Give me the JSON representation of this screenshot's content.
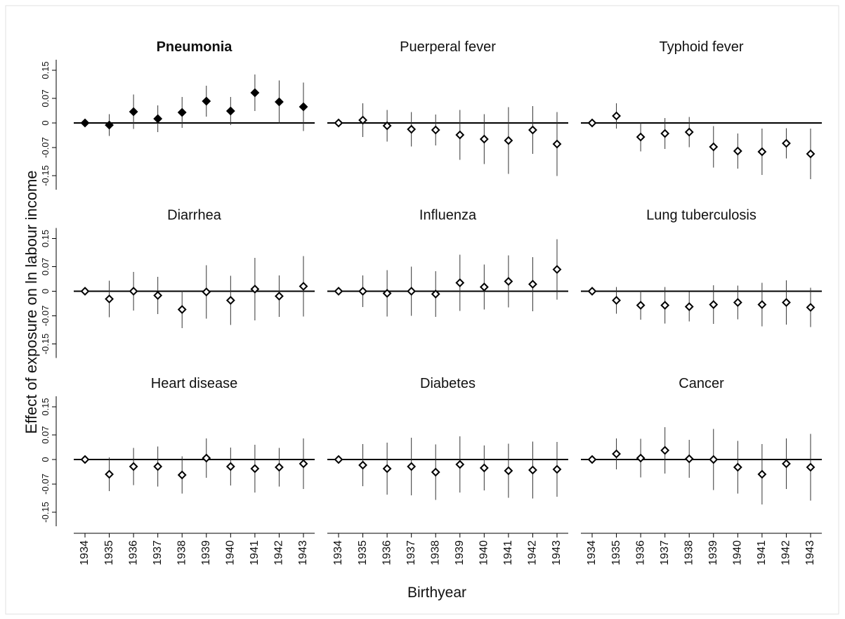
{
  "ylabel": "Effect of exposure on ln labour income",
  "xlabel": "Birthyear",
  "chart_data": [
    {
      "type": "errorbar",
      "title": "Pneumonia",
      "title_bold": true,
      "filled": true,
      "values": [
        0,
        -0.006,
        0.032,
        0.012,
        0.03,
        0.062,
        0.034,
        0.086,
        0.06,
        0.046
      ],
      "errors": [
        0,
        0.031,
        0.049,
        0.038,
        0.044,
        0.044,
        0.04,
        0.052,
        0.061,
        0.069
      ],
      "ylim": [
        -0.19,
        0.18
      ],
      "yticks": [
        0.15,
        0.07,
        0,
        -0.07,
        -0.15
      ]
    },
    {
      "type": "errorbar",
      "title": "Puerperal fever",
      "title_bold": false,
      "filled": false,
      "values": [
        0,
        0.008,
        -0.008,
        -0.018,
        -0.02,
        -0.034,
        -0.046,
        -0.05,
        -0.02,
        -0.06
      ],
      "errors": [
        0,
        0.048,
        0.045,
        0.049,
        0.044,
        0.071,
        0.071,
        0.095,
        0.068,
        0.091
      ],
      "ylim": [
        -0.19,
        0.18
      ]
    },
    {
      "type": "errorbar",
      "title": "Typhoid fever",
      "title_bold": false,
      "filled": false,
      "values": [
        0,
        0.02,
        -0.04,
        -0.03,
        -0.026,
        -0.068,
        -0.08,
        -0.082,
        -0.058,
        -0.088
      ],
      "errors": [
        0,
        0.036,
        0.041,
        0.044,
        0.043,
        0.059,
        0.05,
        0.066,
        0.043,
        0.072
      ],
      "ylim": [
        -0.19,
        0.18
      ]
    },
    {
      "type": "errorbar",
      "title": "Diarrhea",
      "title_bold": false,
      "filled": false,
      "values": [
        0,
        -0.022,
        0,
        -0.012,
        -0.052,
        -0.002,
        -0.026,
        0.006,
        -0.014,
        0.014
      ],
      "errors": [
        0,
        0.052,
        0.055,
        0.053,
        0.053,
        0.076,
        0.07,
        0.089,
        0.059,
        0.086
      ],
      "ylim": [
        -0.19,
        0.18
      ],
      "yticks": [
        0.15,
        0.07,
        0,
        -0.07,
        -0.15
      ]
    },
    {
      "type": "errorbar",
      "title": "Influenza",
      "title_bold": false,
      "filled": false,
      "values": [
        0,
        0,
        -0.006,
        0,
        -0.008,
        0.024,
        0.012,
        0.028,
        0.02,
        0.062
      ],
      "errors": [
        0,
        0.045,
        0.066,
        0.07,
        0.065,
        0.08,
        0.064,
        0.074,
        0.077,
        0.086
      ],
      "ylim": [
        -0.19,
        0.18
      ]
    },
    {
      "type": "errorbar",
      "title": "Lung tuberculosis",
      "title_bold": false,
      "filled": false,
      "values": [
        0,
        -0.026,
        -0.04,
        -0.04,
        -0.044,
        -0.038,
        -0.032,
        -0.038,
        -0.032,
        -0.046
      ],
      "errors": [
        0,
        0.038,
        0.041,
        0.052,
        0.042,
        0.055,
        0.048,
        0.062,
        0.063,
        0.056
      ],
      "ylim": [
        -0.19,
        0.18
      ]
    },
    {
      "type": "errorbar",
      "title": "Heart disease",
      "title_bold": false,
      "filled": false,
      "categories": [
        "1934",
        "1935",
        "1936",
        "1937",
        "1938",
        "1939",
        "1940",
        "1941",
        "1942",
        "1943"
      ],
      "values": [
        0,
        -0.042,
        -0.02,
        -0.02,
        -0.044,
        0.004,
        -0.02,
        -0.026,
        -0.022,
        -0.012
      ],
      "errors": [
        0,
        0.048,
        0.053,
        0.057,
        0.053,
        0.056,
        0.054,
        0.068,
        0.055,
        0.072
      ],
      "ylim": [
        -0.19,
        0.18
      ],
      "yticks": [
        0.15,
        0.07,
        0,
        -0.07,
        -0.15
      ]
    },
    {
      "type": "errorbar",
      "title": "Diabetes",
      "title_bold": false,
      "filled": false,
      "categories": [
        "1934",
        "1935",
        "1936",
        "1937",
        "1938",
        "1939",
        "1940",
        "1941",
        "1942",
        "1943"
      ],
      "values": [
        0,
        -0.016,
        -0.026,
        -0.02,
        -0.036,
        -0.014,
        -0.024,
        -0.032,
        -0.03,
        -0.028
      ],
      "errors": [
        0,
        0.06,
        0.074,
        0.082,
        0.079,
        0.08,
        0.064,
        0.077,
        0.081,
        0.078
      ],
      "ylim": [
        -0.19,
        0.18
      ]
    },
    {
      "type": "errorbar",
      "title": "Cancer",
      "title_bold": false,
      "filled": false,
      "categories": [
        "1934",
        "1935",
        "1936",
        "1937",
        "1938",
        "1939",
        "1940",
        "1941",
        "1942",
        "1943"
      ],
      "values": [
        0,
        0.016,
        0.004,
        0.026,
        0.002,
        0,
        -0.022,
        -0.042,
        -0.012,
        -0.022
      ],
      "errors": [
        0,
        0.044,
        0.055,
        0.066,
        0.054,
        0.087,
        0.075,
        0.086,
        0.072,
        0.095
      ],
      "ylim": [
        -0.19,
        0.18
      ]
    }
  ]
}
